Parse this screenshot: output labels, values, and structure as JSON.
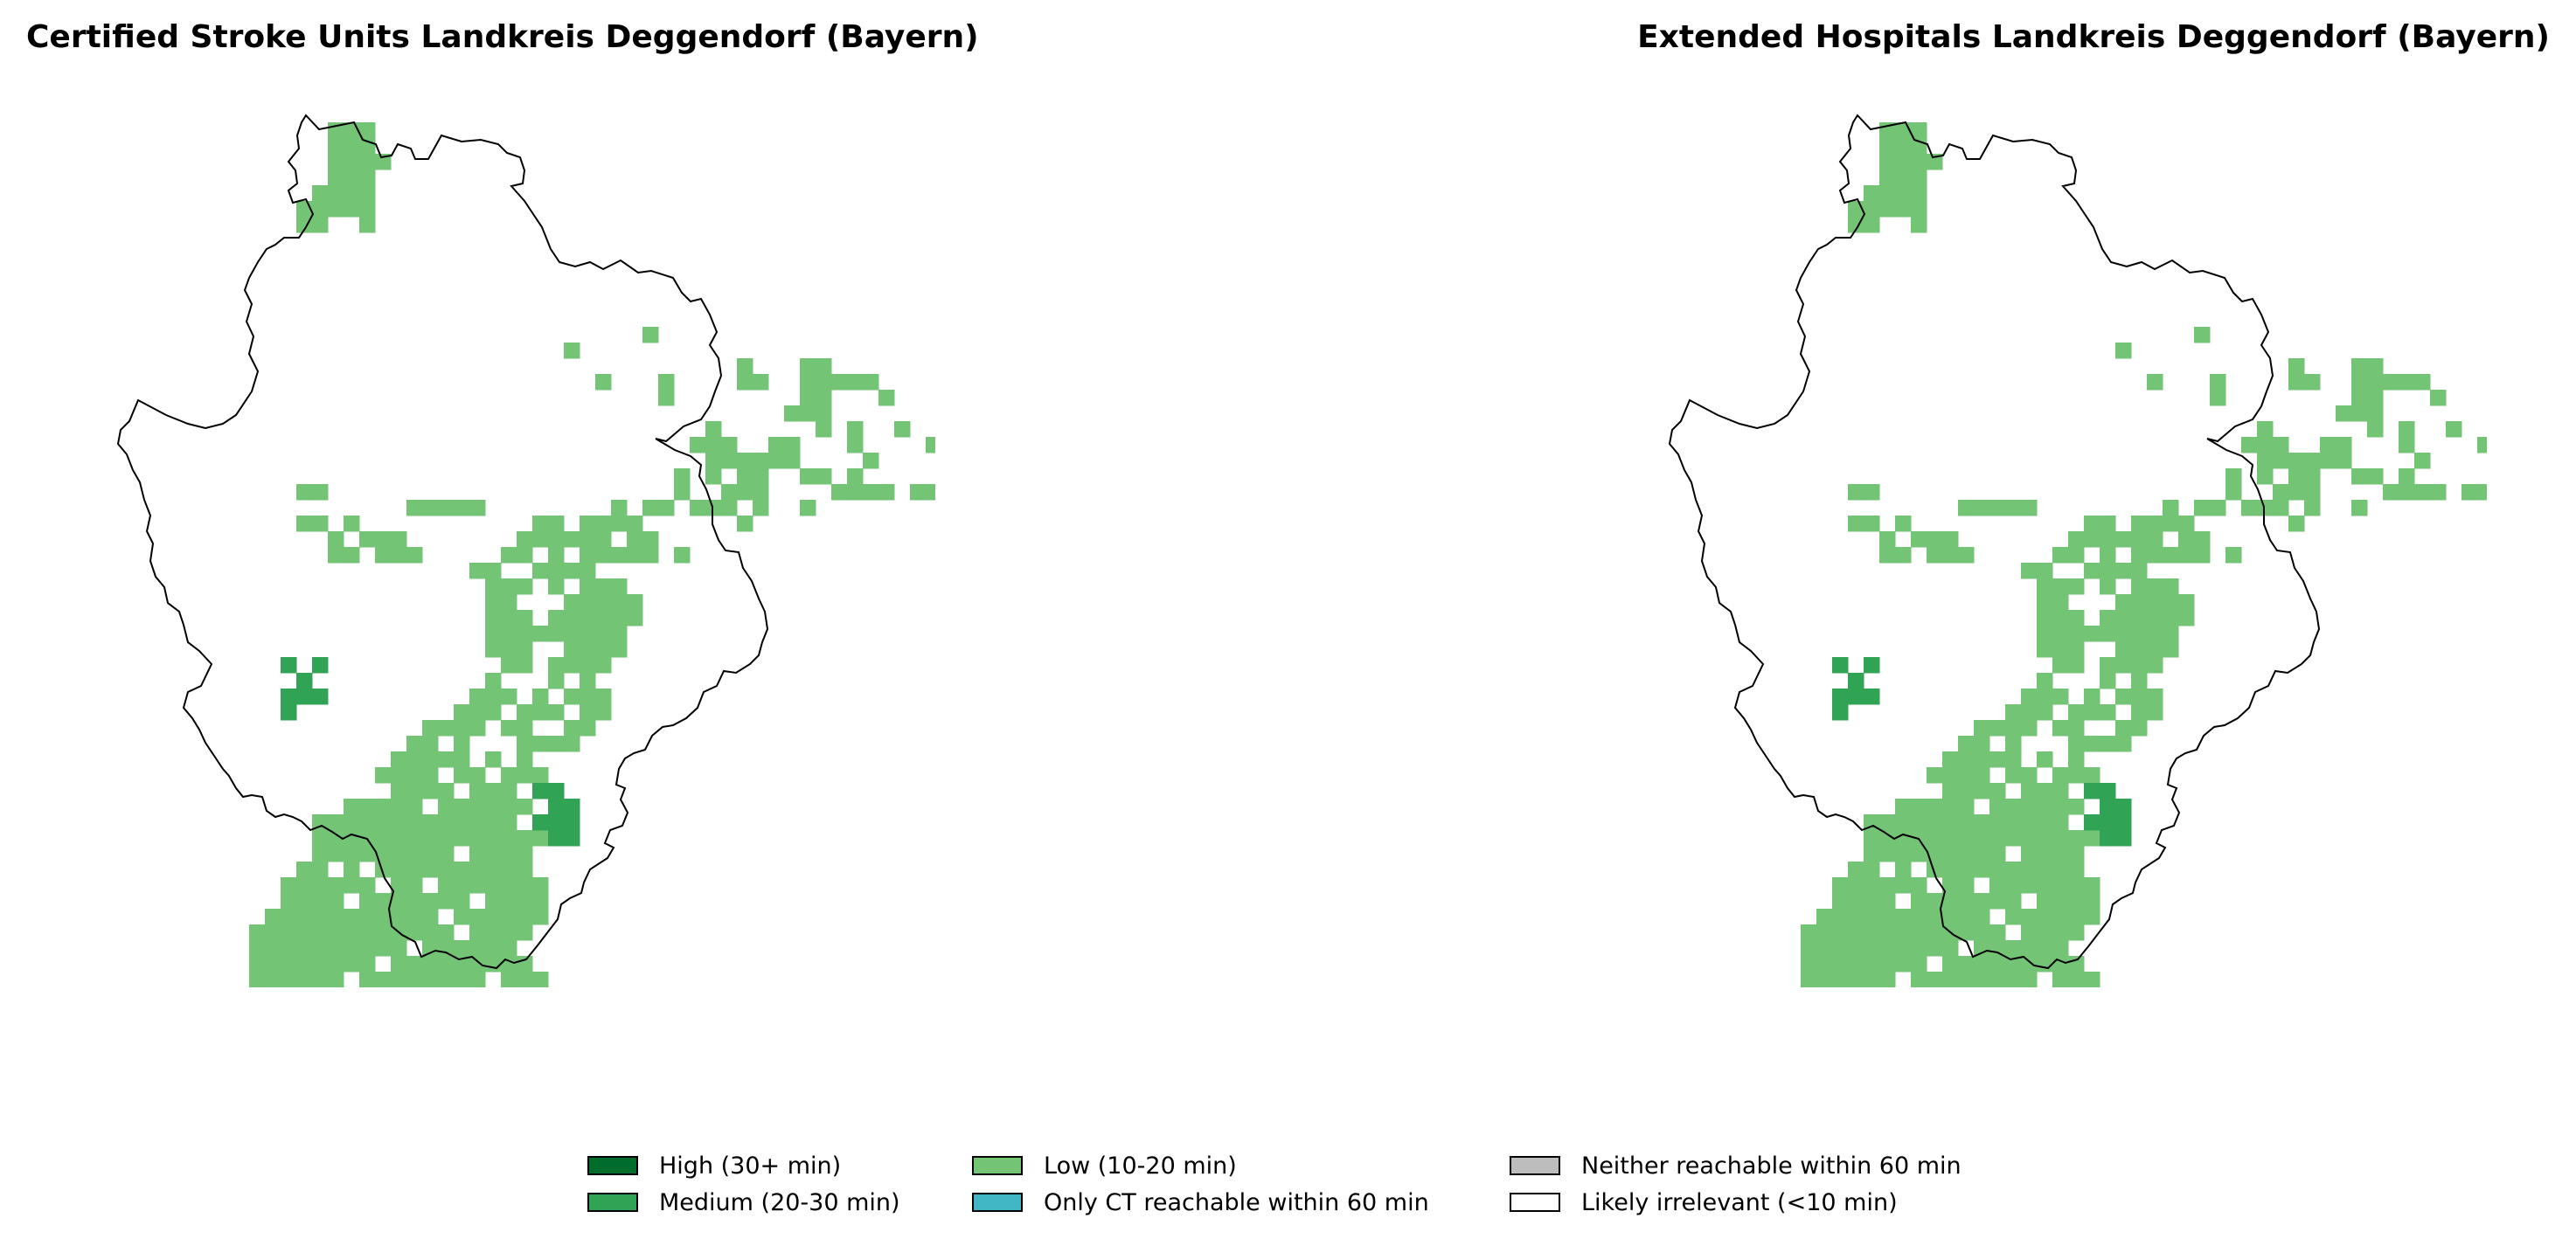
{
  "maps": [
    {
      "title": "Certified Stroke Units Landkreis Deggendorf (Bayern)",
      "cells_low": "5,0,6,0,7,0,5,1,6,1,7,1,5,2,6,2,7,2,8,2,5,3,6,3,7,3,4,4,5,4,6,4,7,4,3,5,4,5,5,5,6,5,7,5,3,6,4,6,7,6,25,13,20,14,31,15,35,15,36,15,22,16,26,16,31,16,32,16,35,16,36,16,37,16,38,16,39,16,26,17,35,17,36,17,40,17,34,18,35,18,36,18,29,19,36,19,38,19,41,19,28,20,29,20,30,20,33,20,34,20,38,20,43,20,29,21,30,21,31,21,32,21,33,21,34,21,39,21,27,22,29,22,31,22,32,22,35,22,36,22,38,22,3,23,4,23,27,23,30,23,31,23,32,23,37,23,38,23,39,23,40,23,42,23,43,23,10,24,11,24,12,24,13,24,14,24,23,24,25,24,26,24,28,24,29,24,30,24,32,24,35,24,3,25,4,25,6,25,18,25,19,25,21,25,22,25,23,25,24,25,31,25,5,26,7,26,8,26,9,26,17,26,18,26,19,26,20,26,21,26,22,26,24,26,25,26,5,27,6,27,8,27,9,27,10,27,16,27,17,27,19,27,21,27,22,27,23,27,24,27,25,27,27,27,14,28,15,28,18,28,19,28,20,28,21,28,15,29,16,29,17,29,19,29,21,29,22,29,23,29,15,30,16,30,20,30,21,30,22,30,23,30,24,30,15,31,16,31,17,31,19,31,20,31,21,31,22,31,23,31,24,31,15,32,16,32,17,32,18,32,19,32,20,32,21,32,22,32,23,32,15,33,16,33,17,33,20,33,21,33,22,33,23,33,16,34,17,34,19,34,20,34,21,34,22,34,15,35,19,35,21,35,14,36,15,36,16,36,18,36,20,36,21,36,22,36,13,37,14,37,15,37,17,37,18,37,19,37,21,37,22,37,11,38,12,38,13,38,14,38,16,38,17,38,20,38,21,38,10,39,11,39,13,39,17,39,18,39,19,39,20,39,9,40,10,40,11,40,12,40,13,40,15,40,17,40,8,41,9,41,10,41,11,41,13,41,14,41,16,41,17,41,18,41,9,42,10,42,11,42,12,42,14,42,15,42,16,42,6,43,7,43,8,43,9,43,10,43,12,43,13,43,14,43,15,43,16,43,17,43,4,44,5,44,6,44,7,44,8,44,9,44,10,44,11,44,12,44,13,44,14,44,15,44,16,44,4,45,5,45,6,45,7,45,8,45,9,45,10,45,11,45,12,45,13,45,14,45,15,45,16,45,17,45,18,45,4,46,5,46,6,46,7,46,8,46,9,46,10,46,11,46,12,46,14,46,15,46,16,46,17,46,3,47,4,47,6,47,8,47,9,47,10,47,11,47,12,47,13,47,14,47,15,47,16,47,17,47,2,48,3,48,4,48,5,48,6,48,7,48,9,48,10,48,12,48,13,48,14,48,15,48,16,48,17,48,18,48,2,49,3,49,4,49,5,49,7,49,8,49,9,49,10,49,11,49,12,49,13,49,15,49,16,49,17,49,18,49,1,50,2,50,3,50,4,50,5,50,6,50,7,50,8,50,9,50,10,50,11,50,13,50,14,50,15,50,16,50,17,50,18,50,0,51,1,51,2,51,3,51,4,51,5,51,6,51,7,51,8,51,9,51,10,51,11,51,12,51,14,51,15,51,16,51,17,51,0,52,1,52,2,52,3,52,4,52,5,52,6,52,7,52,8,52,9,52,11,52,12,52,13,52,14,52,15,52,16,52,0,53,1,53,2,53,3,53,4,53,5,53,6,53,7,53,9,53,10,53,11,53,12,53,13,53,14,53,15,53,16,53,17,53,0,54,1,54,2,54,3,54,4,54,5,54,7,54,8,54,9,54,10,54,11,54,12,54,13,54,14,54,16,54,17,54,18,54",
      "cells_medium": "2,34,4,34,3,35,2,36,3,36,4,36,2,37,18,42,19,42,19,43,20,43,18,44,19,44,20,44,19,45,20,45"
    },
    {
      "title": "Extended Hospitals Landkreis Deggendorf (Bayern)",
      "cells_low": "5,0,6,0,7,0,5,1,6,1,7,1,5,2,6,2,7,2,8,2,5,3,6,3,7,3,4,4,5,4,6,4,7,4,3,5,4,5,5,5,6,5,7,5,3,6,4,6,7,6,25,13,20,14,31,15,35,15,36,15,22,16,26,16,31,16,32,16,35,16,36,16,37,16,38,16,39,16,26,17,35,17,36,17,40,17,34,18,35,18,36,18,29,19,36,19,38,19,41,19,28,20,29,20,30,20,33,20,34,20,38,20,43,20,29,21,30,21,31,21,32,21,33,21,34,21,39,21,27,22,29,22,31,22,32,22,35,22,36,22,38,22,3,23,4,23,27,23,30,23,31,23,32,23,37,23,38,23,39,23,40,23,42,23,43,23,10,24,11,24,12,24,13,24,14,24,23,24,25,24,26,24,28,24,29,24,30,24,32,24,35,24,3,25,4,25,6,25,18,25,19,25,21,25,22,25,23,25,24,25,31,25,5,26,7,26,8,26,9,26,17,26,18,26,19,26,20,26,21,26,22,26,24,26,25,26,5,27,6,27,8,27,9,27,10,27,16,27,17,27,19,27,21,27,22,27,23,27,24,27,25,27,27,27,14,28,15,28,18,28,19,28,20,28,21,28,15,29,16,29,17,29,19,29,21,29,22,29,23,29,15,30,16,30,20,30,21,30,22,30,23,30,24,30,15,31,16,31,17,31,19,31,20,31,21,31,22,31,23,31,24,31,15,32,16,32,17,32,18,32,19,32,20,32,21,32,22,32,23,32,15,33,16,33,17,33,20,33,21,33,22,33,23,33,16,34,17,34,19,34,20,34,21,34,22,34,15,35,19,35,21,35,14,36,15,36,16,36,18,36,20,36,21,36,22,36,13,37,14,37,15,37,17,37,18,37,19,37,21,37,22,37,11,38,12,38,13,38,14,38,16,38,17,38,20,38,21,38,10,39,11,39,13,39,17,39,18,39,19,39,20,39,9,40,10,40,11,40,12,40,13,40,15,40,17,40,8,41,9,41,10,41,11,41,13,41,14,41,16,41,17,41,18,41,9,42,10,42,11,42,12,42,14,42,15,42,16,42,6,43,7,43,8,43,9,43,10,43,12,43,13,43,14,43,15,43,16,43,17,43,4,44,5,44,6,44,7,44,8,44,9,44,10,44,11,44,12,44,13,44,14,44,15,44,16,44,4,45,5,45,6,45,7,45,8,45,9,45,10,45,11,45,12,45,13,45,14,45,15,45,16,45,17,45,18,45,4,46,5,46,6,46,7,46,8,46,9,46,10,46,11,46,12,46,14,46,15,46,16,46,17,46,3,47,4,47,6,47,8,47,9,47,10,47,11,47,12,47,13,47,14,47,15,47,16,47,17,47,2,48,3,48,4,48,5,48,6,48,7,48,9,48,10,48,12,48,13,48,14,48,15,48,16,48,17,48,18,48,2,49,3,49,4,49,5,49,7,49,8,49,9,49,10,49,11,49,12,49,13,49,15,49,16,49,17,49,18,49,1,50,2,50,3,50,4,50,5,50,6,50,7,50,8,50,9,50,10,50,11,50,13,50,14,50,15,50,16,50,17,50,18,50,0,51,1,51,2,51,3,51,4,51,5,51,6,51,7,51,8,51,9,51,10,51,11,51,12,51,14,51,15,51,16,51,17,51,0,52,1,52,2,52,3,52,4,52,5,52,6,52,7,52,8,52,9,52,11,52,12,52,13,52,14,52,15,52,16,52,0,53,1,53,2,53,3,53,4,53,5,53,6,53,7,53,9,53,10,53,11,53,12,53,13,53,14,53,15,53,16,53,17,53,0,54,1,54,2,54,3,54,4,54,5,54,7,54,8,54,9,54,10,54,11,54,12,54,13,54,14,54,16,54,17,54,18,54",
      "cells_medium": "2,34,4,34,3,35,2,36,3,36,4,36,2,37,18,42,19,42,19,43,20,43,18,44,19,44,20,44,19,45,20,45"
    }
  ],
  "legend": [
    {
      "label": "High (30+ min)",
      "color": "#006d2c"
    },
    {
      "label": "Medium (20-30 min)",
      "color": "#31a354"
    },
    {
      "label": "Low (10-20 min)",
      "color": "#74c476"
    },
    {
      "label": "Only CT reachable within 60 min",
      "color": "#41b6c4"
    },
    {
      "label": "Neither reachable within 60 min",
      "color": "#bdbdbd"
    },
    {
      "label": "Likely irrelevant (<10 min)",
      "color": "#ffffff"
    }
  ]
}
